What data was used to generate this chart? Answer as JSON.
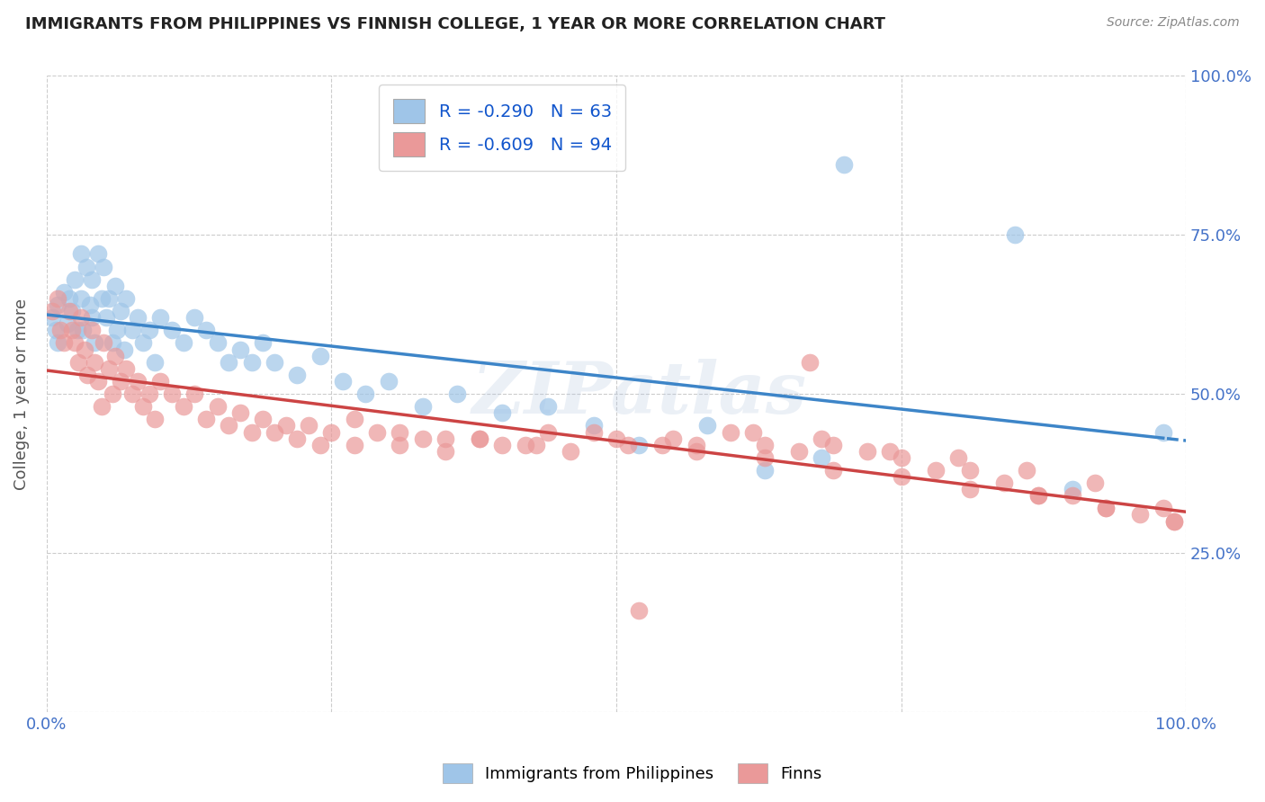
{
  "title": "IMMIGRANTS FROM PHILIPPINES VS FINNISH COLLEGE, 1 YEAR OR MORE CORRELATION CHART",
  "source": "Source: ZipAtlas.com",
  "ylabel": "College, 1 year or more",
  "xlim": [
    0,
    1.0
  ],
  "ylim": [
    0,
    1.0
  ],
  "blue_R": -0.29,
  "blue_N": 63,
  "pink_R": -0.609,
  "pink_N": 94,
  "blue_color": "#9fc5e8",
  "pink_color": "#ea9999",
  "blue_line_color": "#3d85c8",
  "pink_line_color": "#cc4444",
  "legend_R_color": "#1155cc",
  "legend_N_color": "#38761d",
  "watermark": "ZIPatlas",
  "legend_label_blue": "Immigrants from Philippines",
  "legend_label_pink": "Finns",
  "blue_scatter_x": [
    0.005,
    0.008,
    0.01,
    0.01,
    0.015,
    0.018,
    0.02,
    0.022,
    0.025,
    0.027,
    0.03,
    0.03,
    0.032,
    0.035,
    0.038,
    0.04,
    0.04,
    0.042,
    0.045,
    0.048,
    0.05,
    0.052,
    0.055,
    0.058,
    0.06,
    0.062,
    0.065,
    0.068,
    0.07,
    0.075,
    0.08,
    0.085,
    0.09,
    0.095,
    0.1,
    0.11,
    0.12,
    0.13,
    0.14,
    0.15,
    0.16,
    0.17,
    0.18,
    0.19,
    0.2,
    0.22,
    0.24,
    0.26,
    0.28,
    0.3,
    0.33,
    0.36,
    0.4,
    0.44,
    0.48,
    0.52,
    0.58,
    0.63,
    0.68,
    0.7,
    0.85,
    0.9,
    0.98
  ],
  "blue_scatter_y": [
    0.62,
    0.6,
    0.64,
    0.58,
    0.66,
    0.61,
    0.65,
    0.63,
    0.68,
    0.6,
    0.72,
    0.65,
    0.6,
    0.7,
    0.64,
    0.68,
    0.62,
    0.58,
    0.72,
    0.65,
    0.7,
    0.62,
    0.65,
    0.58,
    0.67,
    0.6,
    0.63,
    0.57,
    0.65,
    0.6,
    0.62,
    0.58,
    0.6,
    0.55,
    0.62,
    0.6,
    0.58,
    0.62,
    0.6,
    0.58,
    0.55,
    0.57,
    0.55,
    0.58,
    0.55,
    0.53,
    0.56,
    0.52,
    0.5,
    0.52,
    0.48,
    0.5,
    0.47,
    0.48,
    0.45,
    0.42,
    0.45,
    0.38,
    0.4,
    0.86,
    0.75,
    0.35,
    0.44
  ],
  "pink_scatter_x": [
    0.005,
    0.01,
    0.012,
    0.015,
    0.02,
    0.022,
    0.025,
    0.028,
    0.03,
    0.033,
    0.036,
    0.04,
    0.042,
    0.045,
    0.048,
    0.05,
    0.055,
    0.058,
    0.06,
    0.065,
    0.07,
    0.075,
    0.08,
    0.085,
    0.09,
    0.095,
    0.1,
    0.11,
    0.12,
    0.13,
    0.14,
    0.15,
    0.16,
    0.17,
    0.18,
    0.19,
    0.2,
    0.21,
    0.22,
    0.23,
    0.24,
    0.25,
    0.27,
    0.29,
    0.31,
    0.33,
    0.35,
    0.38,
    0.4,
    0.43,
    0.46,
    0.5,
    0.54,
    0.57,
    0.6,
    0.63,
    0.66,
    0.69,
    0.72,
    0.75,
    0.78,
    0.81,
    0.84,
    0.87,
    0.9,
    0.93,
    0.96,
    0.99,
    0.35,
    0.42,
    0.48,
    0.55,
    0.62,
    0.68,
    0.74,
    0.8,
    0.86,
    0.92,
    0.98,
    0.27,
    0.31,
    0.38,
    0.44,
    0.51,
    0.57,
    0.63,
    0.69,
    0.75,
    0.81,
    0.87,
    0.93,
    0.99,
    0.52,
    0.67
  ],
  "pink_scatter_y": [
    0.63,
    0.65,
    0.6,
    0.58,
    0.63,
    0.6,
    0.58,
    0.55,
    0.62,
    0.57,
    0.53,
    0.6,
    0.55,
    0.52,
    0.48,
    0.58,
    0.54,
    0.5,
    0.56,
    0.52,
    0.54,
    0.5,
    0.52,
    0.48,
    0.5,
    0.46,
    0.52,
    0.5,
    0.48,
    0.5,
    0.46,
    0.48,
    0.45,
    0.47,
    0.44,
    0.46,
    0.44,
    0.45,
    0.43,
    0.45,
    0.42,
    0.44,
    0.42,
    0.44,
    0.42,
    0.43,
    0.41,
    0.43,
    0.42,
    0.42,
    0.41,
    0.43,
    0.42,
    0.42,
    0.44,
    0.42,
    0.41,
    0.42,
    0.41,
    0.4,
    0.38,
    0.38,
    0.36,
    0.34,
    0.34,
    0.32,
    0.31,
    0.3,
    0.43,
    0.42,
    0.44,
    0.43,
    0.44,
    0.43,
    0.41,
    0.4,
    0.38,
    0.36,
    0.32,
    0.46,
    0.44,
    0.43,
    0.44,
    0.42,
    0.41,
    0.4,
    0.38,
    0.37,
    0.35,
    0.34,
    0.32,
    0.3,
    0.16,
    0.55
  ]
}
